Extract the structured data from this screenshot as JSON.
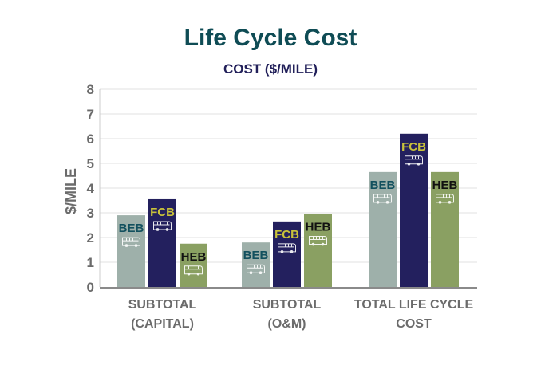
{
  "chart_data": {
    "type": "bar",
    "title": "Life Cycle Cost",
    "subtitle": "COST ($/MILE)",
    "xlabel": "",
    "ylabel": "$/MILE",
    "ylim": [
      0,
      8
    ],
    "yticks": [
      0,
      1,
      2,
      3,
      4,
      5,
      6,
      7,
      8
    ],
    "grid": true,
    "legend": "none (labels inside bars)",
    "categories": [
      [
        "SUBTOTAL",
        "(CAPITAL)"
      ],
      [
        "SUBTOTAL",
        "(O&M)"
      ],
      [
        "TOTAL LIFE CYCLE",
        "COST"
      ]
    ],
    "series": [
      {
        "name": "BEB",
        "values": [
          2.9,
          1.8,
          4.65
        ],
        "color": "#9eb0aa",
        "label_color": "#12505e"
      },
      {
        "name": "FCB",
        "values": [
          3.55,
          2.65,
          6.2
        ],
        "color": "#23205e",
        "label_color": "#c9c23a"
      },
      {
        "name": "HEB",
        "values": [
          1.75,
          2.95,
          4.65
        ],
        "color": "#8aa062",
        "label_color": "#111111"
      }
    ],
    "bar_icon": "bus-icon"
  },
  "colors": {
    "title": "#0f4c55",
    "subtitle": "#22205a",
    "axis_text": "#6b6b6b",
    "grid": "#e2e2e2",
    "axis": "#8a8a8a"
  }
}
